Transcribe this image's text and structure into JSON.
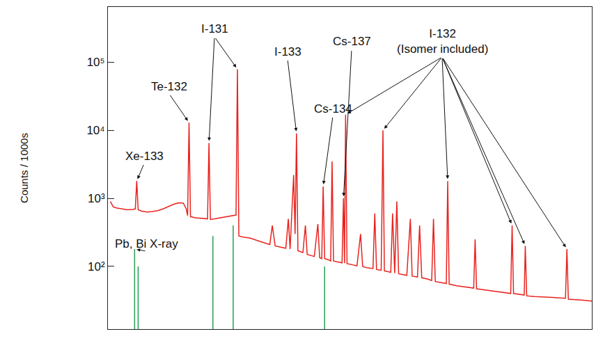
{
  "chart_data": {
    "type": "line",
    "y_label": "Counts / 1000s",
    "log": "y",
    "grid": false,
    "tick_labels": "y",
    "xlim": [
      0,
      1360
    ],
    "ylim": [
      12,
      650000
    ],
    "yticks": [
      {
        "value": 100,
        "label": "10²"
      },
      {
        "value": 1000,
        "label": "10³"
      },
      {
        "value": 10000,
        "label": "10⁴"
      },
      {
        "value": 100000,
        "label": "10⁵"
      }
    ],
    "series": [
      {
        "type": "line",
        "color": "#e8231f",
        "line_style": "solid",
        "x": [
          7,
          15,
          25,
          40,
          55,
          70,
          77,
          81,
          85,
          95,
          110,
          125,
          140,
          155,
          170,
          185,
          200,
          212,
          220,
          224,
          228,
          232,
          245,
          260,
          275,
          280,
          284,
          288,
          300,
          320,
          340,
          355,
          360,
          364,
          368,
          380,
          400,
          420,
          440,
          455,
          462,
          470,
          490,
          500,
          507,
          512,
          522,
          526,
          530,
          534,
          548,
          555,
          560,
          580,
          590,
          595,
          601,
          605,
          609,
          620,
          626,
          630,
          634,
          650,
          658,
          662,
          665,
          668,
          672,
          690,
          700,
          710,
          716,
          730,
          745,
          750,
          755,
          768,
          773,
          777,
          795,
          800,
          806,
          812,
          817,
          840,
          850,
          855,
          870,
          876,
          882,
          900,
          910,
          915,
          920,
          935,
          951,
          955,
          959,
          980,
          1000,
          1028,
          1032,
          1036,
          1060,
          1100,
          1132,
          1136,
          1140,
          1170,
          1173,
          1177,
          1200,
          1250,
          1286,
          1290,
          1294,
          1330,
          1360
        ],
        "values": [
          900,
          750,
          720,
          700,
          680,
          690,
          700,
          1800,
          680,
          650,
          630,
          640,
          660,
          700,
          760,
          820,
          860,
          850,
          700,
          560,
          13000,
          540,
          520,
          510,
          500,
          500,
          6500,
          490,
          500,
          520,
          540,
          560,
          570,
          79000,
          280,
          270,
          260,
          240,
          220,
          210,
          400,
          200,
          190,
          185,
          500,
          180,
          2200,
          300,
          9000,
          170,
          160,
          400,
          150,
          140,
          420,
          135,
          130,
          1500,
          130,
          125,
          120,
          3500,
          120,
          115,
          113,
          1000,
          112,
          17000,
          110,
          105,
          102,
          300,
          100,
          95,
          93,
          600,
          90,
          88,
          10000,
          86,
          82,
          600,
          80,
          900,
          78,
          74,
          500,
          72,
          70,
          400,
          68,
          65,
          62,
          500,
          60,
          58,
          56,
          1800,
          55,
          52,
          50,
          48,
          250,
          47,
          45,
          42,
          40,
          400,
          40,
          38,
          200,
          37,
          36,
          35,
          34,
          180,
          33,
          32,
          31
        ]
      },
      {
        "type": "bar",
        "color": "#2ca05a",
        "x": [
          75,
          85,
          295,
          352,
          609
        ],
        "values": [
          180,
          100,
          280,
          400,
          100
        ]
      }
    ],
    "annotations": [
      {
        "text": [
          "Xe-133"
        ],
        "x": [
          81
        ]
      },
      {
        "text": [
          "Te-132"
        ],
        "x": [
          228
        ]
      },
      {
        "text": [
          "I-131"
        ],
        "x": [
          284,
          364
        ]
      },
      {
        "text": [
          "I-133"
        ],
        "x": [
          530
        ]
      },
      {
        "text": [
          "Cs-137"
        ],
        "x": [
          662
        ]
      },
      {
        "text": [
          "Cs-134"
        ],
        "x": [
          605
        ]
      },
      {
        "text": [
          "I-132",
          "(Isomer included)"
        ],
        "x": [
          668,
          773,
          955,
          1136,
          1173,
          1290
        ]
      },
      {
        "text": [
          "Pb, Bi X-ray"
        ],
        "x": [
          75
        ]
      }
    ]
  }
}
